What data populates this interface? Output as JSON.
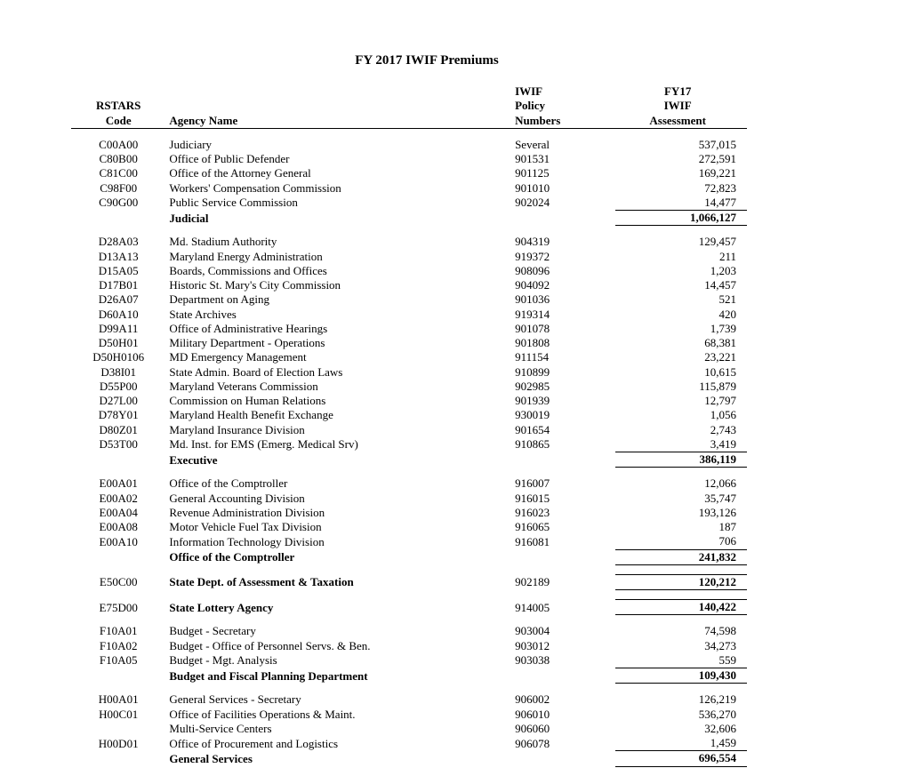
{
  "title": "FY 2017 IWIF Premiums",
  "headers": {
    "code_l1": "RSTARS",
    "code_l2": "Code",
    "name": "Agency Name",
    "policy_l1": "IWIF",
    "policy_l2": "Policy",
    "policy_l3": "Numbers",
    "assess_l1": "FY17",
    "assess_l2": "IWIF",
    "assess_l3": "Assessment"
  },
  "groups": [
    {
      "rows": [
        {
          "code": "C00A00",
          "name": "Judiciary",
          "policy": "Several",
          "assess": "537,015"
        },
        {
          "code": "C80B00",
          "name": "Office of Public Defender",
          "policy": "901531",
          "assess": "272,591"
        },
        {
          "code": "C81C00",
          "name": "Office of the Attorney General",
          "policy": "901125",
          "assess": "169,221"
        },
        {
          "code": "C98F00",
          "name": "Workers' Compensation Commission",
          "policy": "901010",
          "assess": "72,823"
        },
        {
          "code": "C90G00",
          "name": "Public Service Commission",
          "policy": "902024",
          "assess": "14,477"
        }
      ],
      "subtotal": {
        "name": "Judicial",
        "assess": "1,066,127"
      }
    },
    {
      "rows": [
        {
          "code": "D28A03",
          "name": "Md. Stadium Authority",
          "policy": "904319",
          "assess": "129,457"
        },
        {
          "code": "D13A13",
          "name": "Maryland Energy Administration",
          "policy": "919372",
          "assess": "211"
        },
        {
          "code": "D15A05",
          "name": "Boards, Commissions and Offices",
          "policy": "908096",
          "assess": "1,203"
        },
        {
          "code": "D17B01",
          "name": "Historic St. Mary's City Commission",
          "policy": "904092",
          "assess": "14,457"
        },
        {
          "code": "D26A07",
          "name": "Department on Aging",
          "policy": "901036",
          "assess": "521"
        },
        {
          "code": "D60A10",
          "name": "State Archives",
          "policy": "919314",
          "assess": "420"
        },
        {
          "code": "D99A11",
          "name": "Office of Administrative Hearings",
          "policy": "901078",
          "assess": "1,739"
        },
        {
          "code": "D50H01",
          "name": "Military Department - Operations",
          "policy": "901808",
          "assess": "68,381"
        },
        {
          "code": "D50H0106",
          "name": "MD Emergency Management",
          "policy": "911154",
          "assess": "23,221"
        },
        {
          "code": "D38I01",
          "name": "State Admin. Board of Election Laws",
          "policy": "910899",
          "assess": "10,615"
        },
        {
          "code": "D55P00",
          "name": "Maryland Veterans Commission",
          "policy": "902985",
          "assess": "115,879"
        },
        {
          "code": "D27L00",
          "name": "Commission on Human Relations",
          "policy": "901939",
          "assess": "12,797"
        },
        {
          "code": "D78Y01",
          "name": "Maryland Health Benefit Exchange",
          "policy": "930019",
          "assess": "1,056"
        },
        {
          "code": "D80Z01",
          "name": "Maryland Insurance Division",
          "policy": "901654",
          "assess": "2,743"
        },
        {
          "code": "D53T00",
          "name": "Md. Inst. for EMS (Emerg. Medical Srv)",
          "policy": "910865",
          "assess": "3,419"
        }
      ],
      "subtotal": {
        "name": "Executive",
        "assess": "386,119"
      }
    },
    {
      "rows": [
        {
          "code": "E00A01",
          "name": "Office of the Comptroller",
          "policy": "916007",
          "assess": "12,066"
        },
        {
          "code": "E00A02",
          "name": "General Accounting Division",
          "policy": "916015",
          "assess": "35,747"
        },
        {
          "code": "E00A04",
          "name": "Revenue Administration Division",
          "policy": "916023",
          "assess": "193,126"
        },
        {
          "code": "E00A08",
          "name": "Motor Vehicle Fuel Tax Division",
          "policy": "916065",
          "assess": "187"
        },
        {
          "code": "E00A10",
          "name": "Information Technology Division",
          "policy": "916081",
          "assess": "706"
        }
      ],
      "subtotal": {
        "name": "Office of the Comptroller",
        "assess": "241,832"
      }
    },
    {
      "rows": [
        {
          "code": "E50C00",
          "name": "State Dept. of Assessment & Taxation",
          "policy": "902189",
          "assess": "120,212",
          "bold": true,
          "boxed": true
        }
      ]
    },
    {
      "rows": [
        {
          "code": "E75D00",
          "name": "State Lottery Agency",
          "policy": "914005",
          "assess": "140,422",
          "bold": true,
          "boxed": true
        }
      ]
    },
    {
      "rows": [
        {
          "code": "F10A01",
          "name": "Budget - Secretary",
          "policy": "903004",
          "assess": "74,598"
        },
        {
          "code": "F10A02",
          "name": "Budget - Office of Personnel Servs. & Ben.",
          "policy": "903012",
          "assess": "34,273"
        },
        {
          "code": "F10A05",
          "name": "Budget - Mgt. Analysis",
          "policy": "903038",
          "assess": "559"
        }
      ],
      "subtotal": {
        "name": "Budget and Fiscal Planning Department",
        "assess": "109,430"
      }
    },
    {
      "rows": [
        {
          "code": "H00A01",
          "name": "General Services - Secretary",
          "policy": "906002",
          "assess": "126,219"
        },
        {
          "code": "H00C01",
          "name": "Office of Facilities Operations & Maint.",
          "policy": "906010",
          "assess": "536,270"
        },
        {
          "code": "",
          "name": "Multi-Service Centers",
          "policy": "906060",
          "assess": "32,606"
        },
        {
          "code": "H00D01",
          "name": "Office of Procurement and Logistics",
          "policy": "906078",
          "assess": "1,459"
        }
      ],
      "subtotal": {
        "name": "General Services",
        "assess": "696,554"
      }
    }
  ]
}
